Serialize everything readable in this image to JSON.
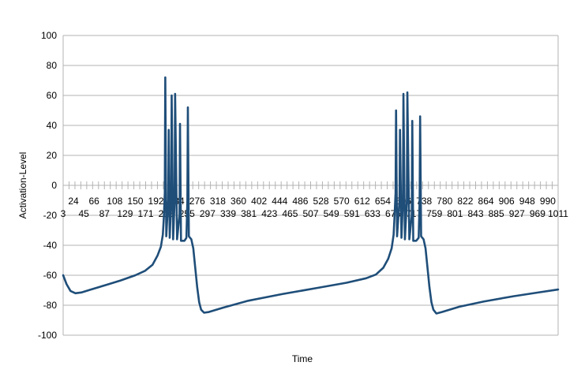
{
  "chart_data": {
    "type": "line",
    "title": "",
    "xlabel": "Time",
    "ylabel": "Activation-Level",
    "ylim": [
      -100,
      100
    ],
    "yticks": [
      -100,
      -80,
      -60,
      -40,
      -20,
      0,
      20,
      40,
      60,
      80,
      100
    ],
    "xlim": [
      3,
      1011
    ],
    "grid": true,
    "legend": "none",
    "xtick_labels_row1": [
      "24",
      "66",
      "108",
      "150",
      "192",
      "234",
      "276",
      "318",
      "360",
      "402",
      "444",
      "486",
      "528",
      "570",
      "612",
      "654",
      "696",
      "738",
      "780",
      "822",
      "864",
      "906",
      "948",
      "990"
    ],
    "xtick_labels_row2": [
      "3",
      "45",
      "87",
      "129",
      "171",
      "213",
      "255",
      "297",
      "339",
      "381",
      "423",
      "465",
      "507",
      "549",
      "591",
      "633",
      "675",
      "717",
      "759",
      "801",
      "843",
      "885",
      "927",
      "969",
      "1011"
    ],
    "series": [
      {
        "color": "#1f4e79",
        "points": [
          [
            3,
            -60
          ],
          [
            10,
            -66
          ],
          [
            18,
            -70.5
          ],
          [
            28,
            -72
          ],
          [
            40,
            -71.5
          ],
          [
            60,
            -69.5
          ],
          [
            90,
            -66.5
          ],
          [
            120,
            -63.5
          ],
          [
            150,
            -60
          ],
          [
            170,
            -57
          ],
          [
            185,
            -53
          ],
          [
            195,
            -47
          ],
          [
            202,
            -41
          ],
          [
            206,
            -33
          ],
          [
            208,
            -22
          ],
          [
            210,
            -5
          ],
          [
            211,
            72
          ],
          [
            213,
            -34
          ],
          [
            217,
            -10
          ],
          [
            218,
            37
          ],
          [
            220,
            -35
          ],
          [
            223,
            -10
          ],
          [
            224,
            60
          ],
          [
            227,
            -36
          ],
          [
            230,
            -10
          ],
          [
            231,
            61
          ],
          [
            235,
            -36
          ],
          [
            240,
            -20
          ],
          [
            241,
            41
          ],
          [
            243,
            -37
          ],
          [
            245,
            -37
          ],
          [
            250,
            -37
          ],
          [
            254,
            -35
          ],
          [
            256,
            -10
          ],
          [
            257,
            52
          ],
          [
            259,
            -34
          ],
          [
            264,
            -36
          ],
          [
            268,
            -42
          ],
          [
            272,
            -55
          ],
          [
            276,
            -68
          ],
          [
            280,
            -78
          ],
          [
            284,
            -83
          ],
          [
            290,
            -85
          ],
          [
            300,
            -84.5
          ],
          [
            330,
            -81.5
          ],
          [
            380,
            -77
          ],
          [
            450,
            -72.5
          ],
          [
            520,
            -68.5
          ],
          [
            580,
            -65
          ],
          [
            620,
            -62
          ],
          [
            640,
            -59.5
          ],
          [
            655,
            -55
          ],
          [
            665,
            -49
          ],
          [
            672,
            -42
          ],
          [
            676,
            -33
          ],
          [
            678,
            -20
          ],
          [
            680,
            -5
          ],
          [
            681,
            50
          ],
          [
            683,
            -34
          ],
          [
            688,
            -10
          ],
          [
            689,
            37
          ],
          [
            692,
            -35
          ],
          [
            695,
            -10
          ],
          [
            696,
            61
          ],
          [
            699,
            -36
          ],
          [
            703,
            -10
          ],
          [
            704,
            62
          ],
          [
            708,
            -36
          ],
          [
            713,
            -20
          ],
          [
            714,
            43
          ],
          [
            716,
            -37
          ],
          [
            718,
            -37
          ],
          [
            722,
            -37
          ],
          [
            727,
            -35
          ],
          [
            729,
            -10
          ],
          [
            730,
            46
          ],
          [
            732,
            -34
          ],
          [
            737,
            -36
          ],
          [
            741,
            -42
          ],
          [
            745,
            -55
          ],
          [
            749,
            -68
          ],
          [
            753,
            -78
          ],
          [
            757,
            -83
          ],
          [
            763,
            -85.5
          ],
          [
            775,
            -84.5
          ],
          [
            810,
            -81
          ],
          [
            860,
            -77.5
          ],
          [
            920,
            -74
          ],
          [
            970,
            -71.5
          ],
          [
            1011,
            -69.5
          ]
        ]
      }
    ]
  }
}
